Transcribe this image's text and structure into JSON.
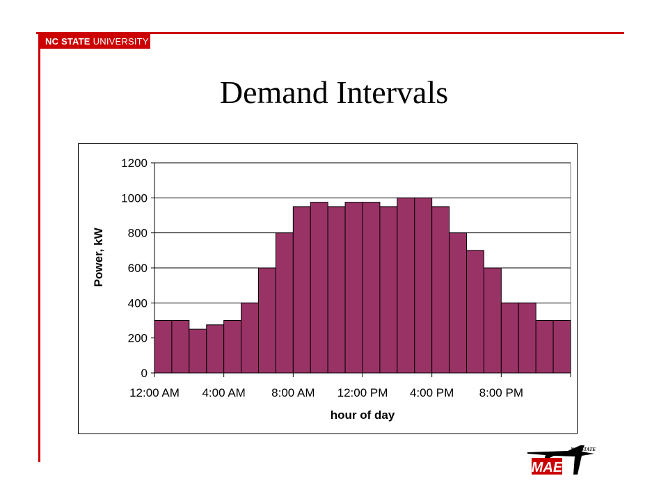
{
  "slide": {
    "title": "Demand Intervals",
    "brand": {
      "bold": "NC STATE",
      "regular": "UNIVERSITY"
    }
  },
  "logo": {
    "top_text": "N.C. STATE",
    "mark": "MAE"
  },
  "colors": {
    "accent": "#cc0000",
    "bar": "#993366",
    "bar_edge": "#000000",
    "grid": "#000000"
  },
  "chart_data": {
    "type": "bar",
    "title": "",
    "xlabel": "hour of day",
    "ylabel": "Power, kW",
    "ylim": [
      0,
      1200
    ],
    "yticks": [
      0,
      200,
      400,
      600,
      800,
      1000,
      1200
    ],
    "grid": true,
    "legend": "none",
    "categories": [
      "12:00 AM",
      "1:00 AM",
      "2:00 AM",
      "3:00 AM",
      "4:00 AM",
      "5:00 AM",
      "6:00 AM",
      "7:00 AM",
      "8:00 AM",
      "9:00 AM",
      "10:00 AM",
      "11:00 AM",
      "12:00 PM",
      "1:00 PM",
      "2:00 PM",
      "3:00 PM",
      "4:00 PM",
      "5:00 PM",
      "6:00 PM",
      "7:00 PM",
      "8:00 PM",
      "9:00 PM",
      "10:00 PM",
      "11:00 PM"
    ],
    "tick_labels": [
      "12:00 AM",
      "4:00 AM",
      "8:00 AM",
      "12:00 PM",
      "4:00 PM",
      "8:00 PM"
    ],
    "values": [
      300,
      300,
      250,
      275,
      300,
      400,
      600,
      800,
      950,
      975,
      950,
      975,
      975,
      950,
      1000,
      1000,
      950,
      800,
      700,
      600,
      400,
      400,
      300,
      300
    ]
  }
}
